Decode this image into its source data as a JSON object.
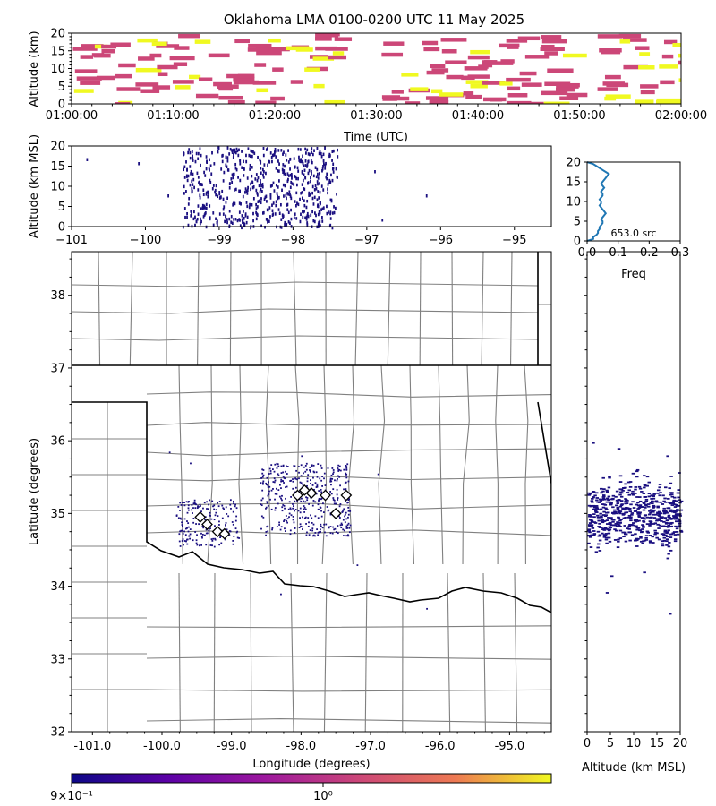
{
  "figure_title": "Oklahoma LMA 0100-0200 UTC 11 May 2025",
  "colors": {
    "background": "#ffffff",
    "source_points": "#1a0f80",
    "histogram_line": "#1f77b4",
    "county_lines": "#808080",
    "state_lines": "#000000",
    "density_low": "#cc4778",
    "density_high": "#f0f921"
  },
  "chart_data": [
    {
      "id": "time_height",
      "type": "heatmap",
      "title": "Oklahoma LMA 0100-0200 UTC 11 May 2025",
      "xlabel": "Time (UTC)",
      "ylabel": "Altitude (km)",
      "xlim": [
        "01:00:00",
        "02:00:00"
      ],
      "ylim": [
        0,
        20
      ],
      "x_tick_labels": [
        "01:00:00",
        "01:10:00",
        "01:20:00",
        "01:30:00",
        "01:40:00",
        "01:50:00",
        "02:00:00"
      ],
      "y_tick_labels": [
        "0",
        "5",
        "10",
        "15",
        "20"
      ],
      "active_periods_minutes": [
        [
          0,
          25.5
        ],
        [
          30.5,
          48
        ],
        [
          51.5,
          60
        ]
      ]
    },
    {
      "id": "lon_alt",
      "type": "scatter",
      "xlabel": "",
      "ylabel": "Altitude (km MSL)",
      "xlim": [
        -101,
        -94.5
      ],
      "ylim": [
        0,
        20
      ],
      "x_tick_labels": [
        "−101",
        "−100",
        "−99",
        "−98",
        "−97",
        "−96",
        "−95"
      ],
      "y_tick_labels": [
        "0",
        "5",
        "10",
        "15",
        "20"
      ],
      "lon_range": [
        -99.5,
        -97.4
      ],
      "alt_range": [
        0,
        20
      ]
    },
    {
      "id": "alt_histogram",
      "type": "line",
      "xlabel": "Freq",
      "ylabel": "",
      "xlim": [
        0,
        0.3
      ],
      "ylim": [
        0,
        20
      ],
      "x_tick_labels": [
        "0.0",
        "0.1",
        "0.2",
        "0.3"
      ],
      "y_tick_labels": [
        "0",
        "5",
        "10",
        "15",
        "20"
      ],
      "annotation": "653.0 src",
      "altitudes": [
        0,
        0.5,
        1,
        1.5,
        2,
        2.5,
        3,
        3.5,
        4,
        4.5,
        5,
        5.5,
        6,
        6.5,
        7,
        7.5,
        8,
        8.5,
        9,
        9.5,
        10,
        10.5,
        11,
        11.5,
        12,
        12.5,
        13,
        13.5,
        14,
        14.5,
        15,
        15.5,
        16,
        16.5,
        17,
        17.5,
        18,
        18.5,
        19,
        19.5,
        20
      ],
      "freq": [
        0,
        0.02,
        0.02,
        0.03,
        0.035,
        0.035,
        0.04,
        0.04,
        0.045,
        0.05,
        0.05,
        0.045,
        0.05,
        0.055,
        0.06,
        0.055,
        0.05,
        0.045,
        0.04,
        0.045,
        0.045,
        0.04,
        0.045,
        0.05,
        0.05,
        0.045,
        0.05,
        0.055,
        0.05,
        0.045,
        0.05,
        0.055,
        0.06,
        0.065,
        0.07,
        0.06,
        0.05,
        0.04,
        0.03,
        0.02,
        0
      ]
    },
    {
      "id": "plan_view",
      "type": "scatter",
      "xlabel": "Longitude (degrees)",
      "ylabel": "Latitude (degrees)",
      "xlim": [
        -101.3,
        -94.4
      ],
      "ylim": [
        32,
        38.6
      ],
      "x_tick_labels": [
        "-101.0",
        "-100.0",
        "-99.0",
        "-98.0",
        "-97.0",
        "-96.0",
        "-95.0"
      ],
      "y_tick_labels": [
        "32",
        "33",
        "34",
        "35",
        "36",
        "37",
        "38"
      ],
      "stations": [
        [
          -99.45,
          34.95
        ],
        [
          -99.35,
          34.85
        ],
        [
          -99.2,
          34.75
        ],
        [
          -99.1,
          34.72
        ],
        [
          -98.05,
          35.25
        ],
        [
          -97.95,
          35.32
        ],
        [
          -97.85,
          35.28
        ],
        [
          -97.65,
          35.25
        ],
        [
          -97.5,
          35.0
        ],
        [
          -97.35,
          35.25
        ]
      ],
      "cluster_main": {
        "lon": [
          -98.6,
          -97.3
        ],
        "lat": [
          34.7,
          35.7
        ]
      },
      "cluster_west": {
        "lon": [
          -99.8,
          -98.9
        ],
        "lat": [
          34.55,
          35.2
        ]
      }
    },
    {
      "id": "alt_lat",
      "type": "scatter",
      "xlabel": "Altitude (km MSL)",
      "ylabel": "",
      "xlim": [
        0,
        20
      ],
      "ylim": [
        32,
        38.6
      ],
      "x_tick_labels": [
        "0",
        "5",
        "10",
        "15",
        "20"
      ],
      "lat_range": [
        34.3,
        35.7
      ]
    },
    {
      "id": "colorbar",
      "type": "heatmap",
      "tick_labels": [
        "9×10⁻¹",
        "10⁰"
      ]
    }
  ]
}
